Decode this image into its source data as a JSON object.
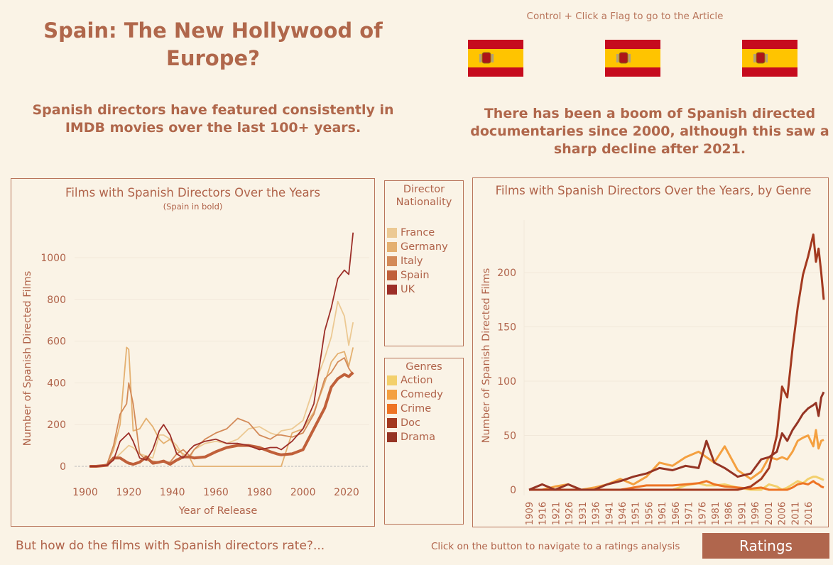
{
  "header": {
    "title": "Spain: The New Hollywood of Europe?",
    "flag_hint": "Control + Click a Flag to go to the Article",
    "flags": [
      {
        "name": "spain-flag"
      },
      {
        "name": "spain-flag"
      },
      {
        "name": "spain-flag"
      }
    ]
  },
  "left_subtitle": "Spanish directors have featured consistently in IMDB movies over the last 100+ years.",
  "right_subtitle": "There has been a boom of Spanish directed documentaries since 2000, although this saw a sharp decline after 2021.",
  "legend_nationality": {
    "title": "Director Nationality",
    "items": [
      {
        "label": "France",
        "color": "#ecc993"
      },
      {
        "label": "Germany",
        "color": "#e4b070"
      },
      {
        "label": "Italy",
        "color": "#d38a58"
      },
      {
        "label": "Spain",
        "color": "#c0603a"
      },
      {
        "label": "UK",
        "color": "#9c2e28"
      }
    ]
  },
  "legend_genres": {
    "title": "Genres",
    "items": [
      {
        "label": "Action",
        "color": "#f3d06c"
      },
      {
        "label": "Comedy",
        "color": "#f4a040"
      },
      {
        "label": "Crime",
        "color": "#ee7424"
      },
      {
        "label": "Doc",
        "color": "#a3391f"
      },
      {
        "label": "Drama",
        "color": "#953424"
      }
    ]
  },
  "footer": {
    "question": "But how do the films with Spanish directors rate?...",
    "nav_hint": "Click on the button to navigate to a ratings analysis",
    "ratings_button": "Ratings"
  },
  "chart_data": [
    {
      "type": "line",
      "title": "Films with Spanish Directors Over the Years",
      "subtitle": "(Spain in bold)",
      "xlabel": "Year of Release",
      "ylabel": "Number of Spanish Directed Films",
      "xlim": [
        1893,
        2030
      ],
      "ylim": [
        -130,
        1180
      ],
      "xticks": [
        "1900",
        "1920",
        "1940",
        "1960",
        "1980",
        "2000",
        "2020"
      ],
      "yticks": [
        "0",
        "200",
        "400",
        "600",
        "800",
        "1000"
      ],
      "x": [
        1902,
        1905,
        1910,
        1913,
        1916,
        1919,
        1920,
        1922,
        1925,
        1928,
        1931,
        1934,
        1936,
        1939,
        1942,
        1945,
        1948,
        1950,
        1955,
        1960,
        1965,
        1970,
        1975,
        1980,
        1985,
        1988,
        1990,
        1995,
        2000,
        2005,
        2010,
        2013,
        2016,
        2019,
        2021,
        2023
      ],
      "series": [
        {
          "name": "France",
          "values": [
            0,
            0,
            5,
            30,
            60,
            90,
            100,
            90,
            60,
            50,
            40,
            150,
            150,
            130,
            100,
            50,
            40,
            80,
            110,
            120,
            110,
            130,
            180,
            190,
            160,
            150,
            170,
            180,
            220,
            380,
            520,
            620,
            790,
            720,
            580,
            690
          ]
        },
        {
          "name": "Germany",
          "values": [
            0,
            0,
            10,
            80,
            200,
            570,
            560,
            170,
            180,
            230,
            190,
            130,
            110,
            130,
            80,
            60,
            40,
            0,
            0,
            0,
            0,
            0,
            0,
            0,
            0,
            0,
            0,
            160,
            180,
            260,
            400,
            500,
            540,
            550,
            480,
            570
          ]
        },
        {
          "name": "Italy",
          "values": [
            0,
            0,
            10,
            100,
            250,
            300,
            400,
            300,
            60,
            30,
            25,
            20,
            20,
            20,
            60,
            80,
            50,
            80,
            130,
            160,
            180,
            230,
            210,
            150,
            130,
            150,
            150,
            140,
            160,
            250,
            420,
            450,
            500,
            520,
            470,
            440
          ]
        },
        {
          "name": "Spain",
          "values": [
            0,
            0,
            5,
            40,
            40,
            20,
            15,
            10,
            20,
            45,
            15,
            20,
            25,
            10,
            30,
            45,
            45,
            40,
            45,
            70,
            90,
            100,
            100,
            90,
            70,
            60,
            55,
            60,
            80,
            180,
            280,
            380,
            420,
            440,
            430,
            450
          ]
        },
        {
          "name": "UK",
          "values": [
            0,
            0,
            5,
            30,
            120,
            150,
            160,
            120,
            40,
            30,
            80,
            170,
            200,
            150,
            60,
            40,
            80,
            100,
            120,
            130,
            110,
            110,
            100,
            80,
            90,
            90,
            80,
            120,
            180,
            300,
            650,
            760,
            900,
            940,
            920,
            1120
          ]
        }
      ]
    },
    {
      "type": "line",
      "title": "Films with Spanish Directors Over the Years, by Genre",
      "xlabel": "",
      "ylabel": "Number of Spanish Directed Films",
      "ylim": [
        -12,
        252
      ],
      "xticks": [
        "1909",
        "1916",
        "1921",
        "1926",
        "1931",
        "1936",
        "1941",
        "1946",
        "1951",
        "1956",
        "1961",
        "1966",
        "1971",
        "1976",
        "1981",
        "1986",
        "1991",
        "1996",
        "2001",
        "2006",
        "2011",
        "2016"
      ],
      "yticks": [
        "0",
        "50",
        "100",
        "150",
        "200"
      ],
      "x": [
        1909,
        1914,
        1919,
        1924,
        1929,
        1934,
        1939,
        1944,
        1949,
        1954,
        1959,
        1964,
        1969,
        1974,
        1977,
        1980,
        1984,
        1989,
        1994,
        1998,
        2001,
        2004,
        2006,
        2008,
        2010,
        2012,
        2014,
        2016,
        2018,
        2019,
        2020,
        2021,
        2022
      ],
      "series": [
        {
          "name": "Action",
          "values": [
            0,
            0,
            0,
            0,
            0,
            0,
            0,
            0,
            0,
            0,
            0,
            0,
            4,
            6,
            4,
            4,
            5,
            2,
            0,
            0,
            5,
            3,
            0,
            2,
            5,
            8,
            6,
            10,
            12,
            12,
            11,
            10,
            9
          ]
        },
        {
          "name": "Comedy",
          "values": [
            0,
            0,
            3,
            5,
            0,
            2,
            5,
            10,
            5,
            12,
            25,
            22,
            30,
            35,
            30,
            25,
            40,
            18,
            10,
            17,
            30,
            28,
            30,
            28,
            35,
            45,
            48,
            50,
            40,
            55,
            38,
            45,
            46
          ]
        },
        {
          "name": "Crime",
          "values": [
            0,
            0,
            0,
            0,
            0,
            0,
            0,
            0,
            2,
            4,
            4,
            4,
            5,
            6,
            8,
            5,
            3,
            2,
            1,
            2,
            0,
            0,
            0,
            0,
            2,
            5,
            6,
            5,
            8,
            6,
            5,
            3,
            2
          ]
        },
        {
          "name": "Doc",
          "values": [
            0,
            0,
            0,
            0,
            0,
            0,
            0,
            0,
            0,
            0,
            0,
            0,
            0,
            0,
            0,
            0,
            0,
            0,
            3,
            10,
            20,
            50,
            95,
            85,
            130,
            168,
            198,
            215,
            235,
            210,
            222,
            200,
            175
          ]
        },
        {
          "name": "Drama",
          "values": [
            0,
            5,
            0,
            5,
            0,
            0,
            5,
            8,
            12,
            15,
            20,
            18,
            22,
            20,
            45,
            25,
            20,
            12,
            15,
            28,
            30,
            35,
            52,
            45,
            55,
            62,
            70,
            75,
            78,
            80,
            68,
            85,
            90
          ]
        }
      ]
    }
  ]
}
